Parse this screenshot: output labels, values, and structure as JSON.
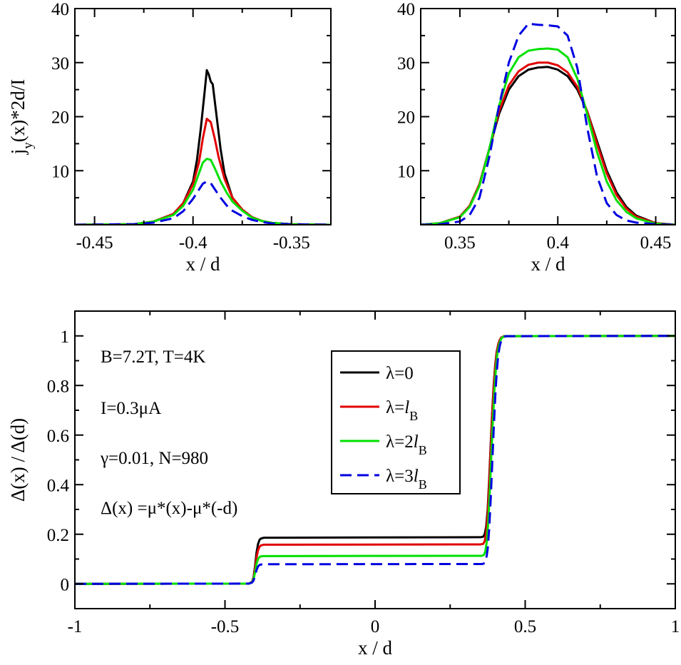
{
  "chart_data": [
    {
      "type": "line",
      "panel": "top-left",
      "xlabel": "x / d",
      "ylabel": "j_y(x)*2d/I",
      "ylabel_main": "j",
      "ylabel_sub": "y",
      "ylabel_rest": "(x)*2d/I",
      "xlim": [
        -0.46,
        -0.33
      ],
      "ylim": [
        0,
        40
      ],
      "xticks": [
        -0.45,
        -0.4,
        -0.35
      ],
      "xtick_labels": [
        "-0.45",
        "-0.4",
        "-0.35"
      ],
      "yticks": [
        10,
        20,
        30,
        40
      ],
      "ytick_labels": [
        "10",
        "20",
        "30",
        "40"
      ],
      "grid": false,
      "series": [
        {
          "name": "λ=0",
          "color": "#000000",
          "dash": "solid",
          "x": [
            -0.46,
            -0.43,
            -0.42,
            -0.41,
            -0.405,
            -0.4,
            -0.398,
            -0.396,
            -0.394,
            -0.393,
            -0.392,
            -0.391,
            -0.39,
            -0.388,
            -0.386,
            -0.384,
            -0.38,
            -0.375,
            -0.37,
            -0.365,
            -0.36,
            -0.35,
            -0.33
          ],
          "y": [
            0,
            0.1,
            0.6,
            2.0,
            4.0,
            8.0,
            12.0,
            18.0,
            25.0,
            28.6,
            27.8,
            26.5,
            26.0,
            20.0,
            14.0,
            9.5,
            5.0,
            2.8,
            1.4,
            0.7,
            0.35,
            0.1,
            0
          ]
        },
        {
          "name": "λ=l_B",
          "color": "#e00000",
          "dash": "solid",
          "x": [
            -0.46,
            -0.43,
            -0.42,
            -0.41,
            -0.405,
            -0.4,
            -0.397,
            -0.395,
            -0.393,
            -0.391,
            -0.389,
            -0.387,
            -0.384,
            -0.38,
            -0.375,
            -0.37,
            -0.365,
            -0.36,
            -0.35,
            -0.33
          ],
          "y": [
            0,
            0.1,
            0.6,
            2.0,
            4.0,
            7.5,
            11.5,
            16.0,
            19.6,
            19.0,
            16.0,
            12.5,
            8.5,
            5.0,
            2.8,
            1.4,
            0.7,
            0.35,
            0.1,
            0
          ]
        },
        {
          "name": "λ=2l_B",
          "color": "#00e000",
          "dash": "solid",
          "x": [
            -0.46,
            -0.43,
            -0.42,
            -0.41,
            -0.405,
            -0.4,
            -0.397,
            -0.395,
            -0.393,
            -0.391,
            -0.389,
            -0.386,
            -0.383,
            -0.38,
            -0.375,
            -0.37,
            -0.365,
            -0.36,
            -0.35,
            -0.33
          ],
          "y": [
            0,
            0.1,
            0.6,
            1.8,
            3.5,
            6.5,
            9.5,
            11.5,
            12.2,
            12.0,
            10.5,
            8.0,
            6.0,
            4.3,
            2.6,
            1.3,
            0.7,
            0.35,
            0.1,
            0
          ]
        },
        {
          "name": "λ=3l_B",
          "color": "#0000e0",
          "dash": "dashed",
          "x": [
            -0.46,
            -0.43,
            -0.42,
            -0.41,
            -0.405,
            -0.4,
            -0.397,
            -0.395,
            -0.393,
            -0.391,
            -0.389,
            -0.386,
            -0.383,
            -0.38,
            -0.375,
            -0.37,
            -0.365,
            -0.36,
            -0.35,
            -0.33
          ],
          "y": [
            0,
            0.1,
            0.4,
            1.2,
            2.5,
            4.8,
            6.5,
            7.6,
            8.0,
            7.7,
            6.6,
            5.0,
            3.6,
            2.6,
            1.6,
            0.9,
            0.5,
            0.25,
            0.08,
            0
          ]
        }
      ]
    },
    {
      "type": "line",
      "panel": "top-right",
      "xlabel": "x / d",
      "ylabel": "",
      "xlim": [
        0.33,
        0.46
      ],
      "ylim": [
        0,
        40
      ],
      "xticks": [
        0.35,
        0.4,
        0.45
      ],
      "xtick_labels": [
        "0.35",
        "0.4",
        "0.45"
      ],
      "yticks": [
        10,
        20,
        30,
        40
      ],
      "ytick_labels": [
        "10",
        "20",
        "30",
        "40"
      ],
      "grid": false,
      "series": [
        {
          "name": "λ=0",
          "color": "#000000",
          "dash": "solid",
          "x": [
            0.33,
            0.34,
            0.35,
            0.355,
            0.36,
            0.365,
            0.37,
            0.375,
            0.38,
            0.385,
            0.39,
            0.395,
            0.4,
            0.405,
            0.41,
            0.415,
            0.42,
            0.425,
            0.43,
            0.435,
            0.44,
            0.45,
            0.46
          ],
          "y": [
            0,
            0.3,
            1.5,
            3.5,
            7.5,
            14.0,
            20.5,
            25.0,
            27.5,
            28.7,
            29.1,
            29.2,
            28.7,
            27.5,
            25.0,
            21.0,
            15.5,
            10.0,
            6.0,
            3.3,
            1.7,
            0.3,
            0
          ]
        },
        {
          "name": "λ=l_B",
          "color": "#e00000",
          "dash": "solid",
          "x": [
            0.33,
            0.34,
            0.35,
            0.355,
            0.36,
            0.365,
            0.37,
            0.375,
            0.38,
            0.385,
            0.39,
            0.395,
            0.4,
            0.405,
            0.41,
            0.415,
            0.42,
            0.425,
            0.43,
            0.435,
            0.44,
            0.45,
            0.46
          ],
          "y": [
            0,
            0.3,
            1.5,
            3.5,
            7.5,
            14.0,
            21.0,
            25.8,
            28.4,
            29.6,
            30.0,
            30.0,
            29.5,
            28.2,
            25.5,
            21.0,
            15.0,
            9.5,
            5.5,
            3.0,
            1.5,
            0.3,
            0
          ]
        },
        {
          "name": "λ=2l_B",
          "color": "#00e000",
          "dash": "solid",
          "x": [
            0.33,
            0.34,
            0.35,
            0.355,
            0.36,
            0.365,
            0.37,
            0.375,
            0.38,
            0.385,
            0.39,
            0.395,
            0.4,
            0.405,
            0.41,
            0.415,
            0.42,
            0.425,
            0.43,
            0.435,
            0.44,
            0.45,
            0.46
          ],
          "y": [
            0,
            0.3,
            1.4,
            3.3,
            7.2,
            14.0,
            22.0,
            28.0,
            31.0,
            32.2,
            32.5,
            32.6,
            32.4,
            31.0,
            27.0,
            20.5,
            13.5,
            8.0,
            4.5,
            2.4,
            1.2,
            0.2,
            0
          ]
        },
        {
          "name": "λ=3l_B",
          "color": "#0000e0",
          "dash": "dashed",
          "x": [
            0.33,
            0.34,
            0.35,
            0.355,
            0.36,
            0.365,
            0.37,
            0.375,
            0.38,
            0.385,
            0.39,
            0.395,
            0.4,
            0.405,
            0.41,
            0.415,
            0.42,
            0.425,
            0.43,
            0.435,
            0.44,
            0.45,
            0.46
          ],
          "y": [
            0,
            0.1,
            0.6,
            1.8,
            5.0,
            12.5,
            22.0,
            30.0,
            35.0,
            37.2,
            37.0,
            36.9,
            36.7,
            35.0,
            29.0,
            18.0,
            9.0,
            4.0,
            1.8,
            0.8,
            0.4,
            0.1,
            0
          ]
        }
      ]
    },
    {
      "type": "line",
      "panel": "bottom",
      "xlabel": "x / d",
      "ylabel": "Δ(x) / Δ(d)",
      "xlim": [
        -1,
        1
      ],
      "ylim": [
        -0.1,
        1.1
      ],
      "xticks": [
        -1,
        -0.5,
        0,
        0.5,
        1
      ],
      "xtick_labels": [
        "-1",
        "-0.5",
        "0",
        "0.5",
        "1"
      ],
      "yticks": [
        0,
        0.2,
        0.4,
        0.6,
        0.8,
        1
      ],
      "ytick_labels": [
        "0",
        "0.2",
        "0.4",
        "0.6",
        "0.8",
        "1"
      ],
      "grid": false,
      "legend_placement": "center-right",
      "legend": {
        "entries": [
          {
            "main": "λ=0",
            "italic": "",
            "sub": "",
            "color": "#000000",
            "dash": "solid"
          },
          {
            "main": "λ=",
            "italic": "l",
            "sub": "B",
            "color": "#e00000",
            "dash": "solid"
          },
          {
            "main": "λ=2",
            "italic": "l",
            "sub": "B",
            "color": "#00e000",
            "dash": "solid"
          },
          {
            "main": "λ=3",
            "italic": "l",
            "sub": "B",
            "color": "#0000e0",
            "dash": "dashed"
          }
        ]
      },
      "annotations": [
        "B=7.2T,  T=4K",
        "I=0.3μA",
        "γ=0.01,  N=980",
        "Δ(x) =μ*(x)-μ*(-d)"
      ],
      "series": [
        {
          "name": "λ=0",
          "color": "#000000",
          "dash": "solid",
          "x": [
            -1,
            -0.42,
            -0.41,
            -0.405,
            -0.4,
            -0.395,
            -0.39,
            -0.385,
            -0.38,
            -0.37,
            0.35,
            0.36,
            0.365,
            0.37,
            0.375,
            0.38,
            0.385,
            0.39,
            0.395,
            0.4,
            0.405,
            0.41,
            0.415,
            0.42,
            0.43,
            1
          ],
          "y": [
            0,
            0.001,
            0.008,
            0.025,
            0.07,
            0.125,
            0.16,
            0.177,
            0.183,
            0.186,
            0.188,
            0.19,
            0.2,
            0.23,
            0.3,
            0.42,
            0.56,
            0.69,
            0.8,
            0.88,
            0.935,
            0.965,
            0.983,
            0.993,
            0.999,
            1
          ]
        },
        {
          "name": "λ=l_B",
          "color": "#e00000",
          "dash": "solid",
          "x": [
            -1,
            -0.42,
            -0.41,
            -0.405,
            -0.4,
            -0.395,
            -0.39,
            -0.385,
            -0.38,
            -0.37,
            0.35,
            0.36,
            0.365,
            0.37,
            0.375,
            0.38,
            0.385,
            0.39,
            0.395,
            0.4,
            0.405,
            0.41,
            0.415,
            0.42,
            0.43,
            1
          ],
          "y": [
            0,
            0.001,
            0.007,
            0.022,
            0.06,
            0.105,
            0.135,
            0.15,
            0.155,
            0.158,
            0.159,
            0.161,
            0.172,
            0.205,
            0.28,
            0.4,
            0.54,
            0.68,
            0.79,
            0.87,
            0.93,
            0.963,
            0.982,
            0.993,
            0.999,
            1
          ]
        },
        {
          "name": "λ=2l_B",
          "color": "#00e000",
          "dash": "solid",
          "x": [
            -1,
            -0.42,
            -0.41,
            -0.405,
            -0.4,
            -0.395,
            -0.39,
            -0.385,
            -0.38,
            -0.37,
            0.355,
            0.362,
            0.367,
            0.372,
            0.377,
            0.382,
            0.387,
            0.392,
            0.397,
            0.402,
            0.407,
            0.412,
            0.417,
            0.422,
            0.432,
            1
          ],
          "y": [
            0,
            0.001,
            0.006,
            0.018,
            0.045,
            0.08,
            0.1,
            0.108,
            0.111,
            0.112,
            0.113,
            0.116,
            0.13,
            0.17,
            0.25,
            0.37,
            0.51,
            0.65,
            0.77,
            0.86,
            0.925,
            0.96,
            0.98,
            0.992,
            0.999,
            1
          ]
        },
        {
          "name": "λ=3l_B",
          "color": "#0000e0",
          "dash": "dashed",
          "x": [
            -1,
            -0.42,
            -0.41,
            -0.405,
            -0.4,
            -0.395,
            -0.39,
            -0.385,
            -0.38,
            -0.37,
            0.358,
            0.365,
            0.37,
            0.375,
            0.38,
            0.385,
            0.39,
            0.395,
            0.4,
            0.405,
            0.41,
            0.415,
            0.42,
            0.425,
            0.435,
            1
          ],
          "y": [
            0,
            0.001,
            0.005,
            0.013,
            0.032,
            0.055,
            0.07,
            0.076,
            0.078,
            0.079,
            0.08,
            0.084,
            0.1,
            0.14,
            0.22,
            0.34,
            0.48,
            0.62,
            0.75,
            0.85,
            0.92,
            0.958,
            0.98,
            0.992,
            0.999,
            1
          ]
        }
      ]
    }
  ]
}
